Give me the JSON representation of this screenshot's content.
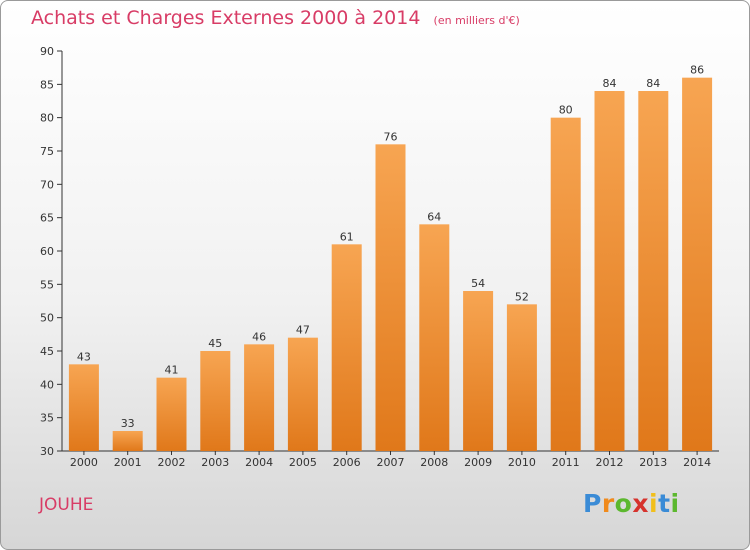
{
  "chart_data": {
    "type": "bar",
    "title": "Achats et Charges Externes 2000 à 2014",
    "subtitle": "(en milliers d'€)",
    "categories": [
      "2000",
      "2001",
      "2002",
      "2003",
      "2004",
      "2005",
      "2006",
      "2007",
      "2008",
      "2009",
      "2010",
      "2011",
      "2012",
      "2013",
      "2014"
    ],
    "values": [
      43,
      33,
      41,
      45,
      46,
      47,
      61,
      76,
      64,
      54,
      52,
      80,
      84,
      84,
      86
    ],
    "ylim": [
      30,
      90
    ],
    "yticks": [
      30,
      35,
      40,
      45,
      50,
      55,
      60,
      65,
      70,
      75,
      80,
      85,
      90
    ],
    "grid": false,
    "bar_color": "#f0923a"
  },
  "commune": "JOUHE",
  "logo": {
    "letters": [
      "P",
      "r",
      "o",
      "x",
      "i",
      "t",
      "i"
    ]
  }
}
